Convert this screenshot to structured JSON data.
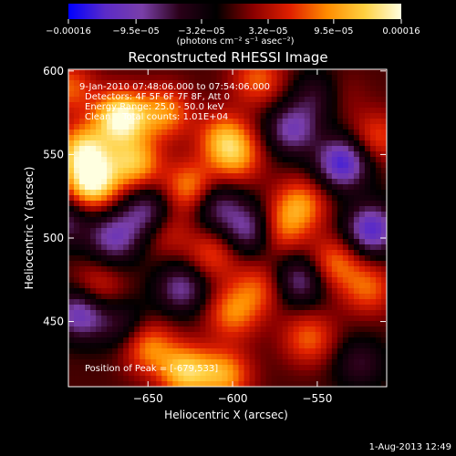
{
  "chart_data": {
    "type": "heatmap",
    "title": "Reconstructed RHESSI Image",
    "xlabel": "Heliocentric X (arcsec)",
    "ylabel": "Heliocentric Y (arcsec)",
    "xlim": [
      -697,
      -509
    ],
    "ylim": [
      411,
      601
    ],
    "x_ticks": [
      -650,
      -600,
      -550
    ],
    "y_ticks": [
      450,
      500,
      550,
      600
    ],
    "x_tick_labels": [
      "−650",
      "−600",
      "−550"
    ],
    "y_tick_labels": [
      "450",
      "500",
      "550",
      "600"
    ],
    "colorbar": {
      "min": -0.00016,
      "max": 0.00016,
      "tick_values": [
        -0.00016,
        -9.5e-05,
        -3.2e-05,
        3.2e-05,
        9.5e-05,
        0.00016
      ],
      "tick_labels": [
        "−0.00016",
        "−9.5e−05",
        "−3.2e−05",
        "3.2e−05",
        "9.5e−05",
        "0.00016"
      ],
      "unit_label": "(photons cm⁻² s⁻¹ asec⁻²)",
      "colormap": [
        "#0000ff",
        "#5b2bc8",
        "#7a3fa8",
        "#2a0018",
        "#000000",
        "#8b0000",
        "#e02000",
        "#ff8c00",
        "#ffd040",
        "#ffffe0"
      ]
    },
    "annotations": [
      "9-Jan-2010 07:48:06.000 to 07:54:06.000",
      "Detectors: 4F 5F 6F 7F 8F, Att 0",
      "Energy Range: 25.0 - 50.0 keV",
      "Clean    Total counts: 1.01E+04",
      "Position of Peak = [-679,533]"
    ],
    "peak_position": [
      -679,
      533
    ],
    "blobs": [
      {
        "x": -666,
        "y": 572,
        "v": 1.0
      },
      {
        "x": -683,
        "y": 533,
        "v": 0.95
      },
      {
        "x": -688,
        "y": 552,
        "v": 0.8
      },
      {
        "x": -658,
        "y": 545,
        "v": 0.7
      },
      {
        "x": -640,
        "y": 575,
        "v": 0.55
      },
      {
        "x": -625,
        "y": 530,
        "v": 0.6
      },
      {
        "x": -605,
        "y": 560,
        "v": 0.55
      },
      {
        "x": -598,
        "y": 548,
        "v": 0.5
      },
      {
        "x": -585,
        "y": 595,
        "v": 0.45
      },
      {
        "x": -560,
        "y": 520,
        "v": 0.55
      },
      {
        "x": -572,
        "y": 505,
        "v": 0.45
      },
      {
        "x": -540,
        "y": 485,
        "v": 0.5
      },
      {
        "x": -520,
        "y": 470,
        "v": 0.45
      },
      {
        "x": -600,
        "y": 455,
        "v": 0.5
      },
      {
        "x": -650,
        "y": 435,
        "v": 0.55
      },
      {
        "x": -628,
        "y": 420,
        "v": 0.75
      },
      {
        "x": -605,
        "y": 418,
        "v": 0.6
      },
      {
        "x": -555,
        "y": 440,
        "v": 0.45
      },
      {
        "x": -680,
        "y": 470,
        "v": 0.35
      },
      {
        "x": -640,
        "y": 505,
        "v": 0.35
      },
      {
        "x": -612,
        "y": 490,
        "v": 0.4
      },
      {
        "x": -515,
        "y": 560,
        "v": 0.4
      },
      {
        "x": -540,
        "y": 585,
        "v": 0.3
      },
      {
        "x": -697,
        "y": 590,
        "v": 0.45
      },
      {
        "x": -585,
        "y": 470,
        "v": 0.4
      },
      {
        "x": -670,
        "y": 500,
        "v": -0.6
      },
      {
        "x": -630,
        "y": 470,
        "v": -0.55
      },
      {
        "x": -690,
        "y": 455,
        "v": -0.7
      },
      {
        "x": -590,
        "y": 505,
        "v": -0.6
      },
      {
        "x": -560,
        "y": 475,
        "v": -0.55
      },
      {
        "x": -535,
        "y": 545,
        "v": -0.85
      },
      {
        "x": -518,
        "y": 505,
        "v": -0.8
      },
      {
        "x": -565,
        "y": 565,
        "v": -0.6
      },
      {
        "x": -548,
        "y": 585,
        "v": -0.5
      },
      {
        "x": -650,
        "y": 515,
        "v": -0.6
      },
      {
        "x": -700,
        "y": 510,
        "v": -0.45
      },
      {
        "x": -610,
        "y": 520,
        "v": -0.5
      },
      {
        "x": -525,
        "y": 425,
        "v": -0.35
      },
      {
        "x": -665,
        "y": 448,
        "v": -0.35
      }
    ]
  },
  "footer": {
    "timestamp": "1-Aug-2013 12:49"
  }
}
